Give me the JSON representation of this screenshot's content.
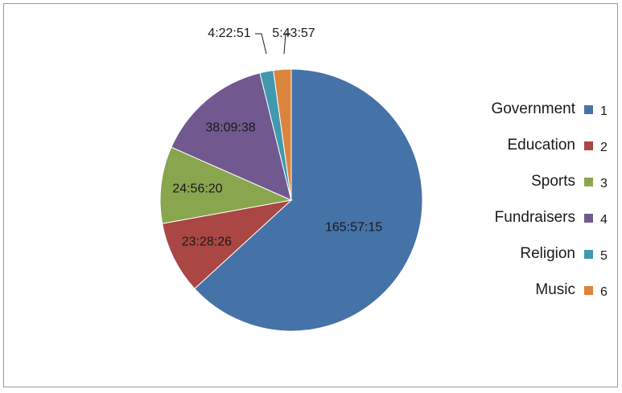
{
  "chart_data": {
    "type": "pie",
    "title": "",
    "slices": [
      {
        "number": "1",
        "legend_label": "Government",
        "value_label": "165:57:15",
        "value_seconds": 597435,
        "color": "#4572A7"
      },
      {
        "number": "2",
        "legend_label": "Education",
        "value_label": "23:28:26",
        "value_seconds": 84506,
        "color": "#AA4643"
      },
      {
        "number": "3",
        "legend_label": "Sports",
        "value_label": "24:56:20",
        "value_seconds": 89780,
        "color": "#89A54E"
      },
      {
        "number": "4",
        "legend_label": "Fundraisers",
        "value_label": "38:09:38",
        "value_seconds": 137378,
        "color": "#71588F"
      },
      {
        "number": "5",
        "legend_label": "Religion",
        "value_label": "4:22:51",
        "value_seconds": 15771,
        "color": "#4198AF"
      },
      {
        "number": "6",
        "legend_label": "Music",
        "value_label": "5:43:57",
        "value_seconds": 20637,
        "color": "#DB843D"
      }
    ],
    "legend_position": "right"
  }
}
